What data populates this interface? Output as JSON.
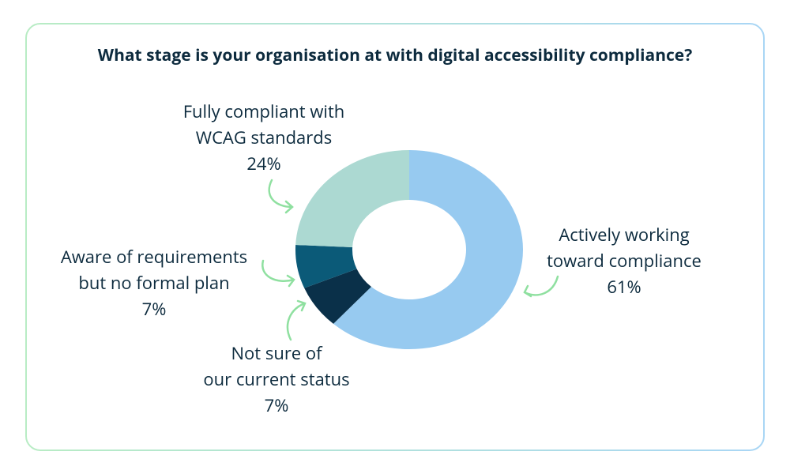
{
  "chart_data": {
    "type": "donut",
    "title": "What stage is your organisation at with digital accessibility compliance?",
    "categories": [
      "Actively working\ntoward compliance",
      "Not sure of\nour current status",
      "Aware of requirements\nbut no formal plan",
      "Fully compliant with\nWCAG standards"
    ],
    "values": [
      61,
      7,
      7,
      24
    ],
    "value_labels": [
      "61%",
      "7%",
      "7%",
      "24%"
    ],
    "colors": [
      "#97caf0",
      "#0a3049",
      "#0b5a78",
      "#acd9d2"
    ]
  }
}
